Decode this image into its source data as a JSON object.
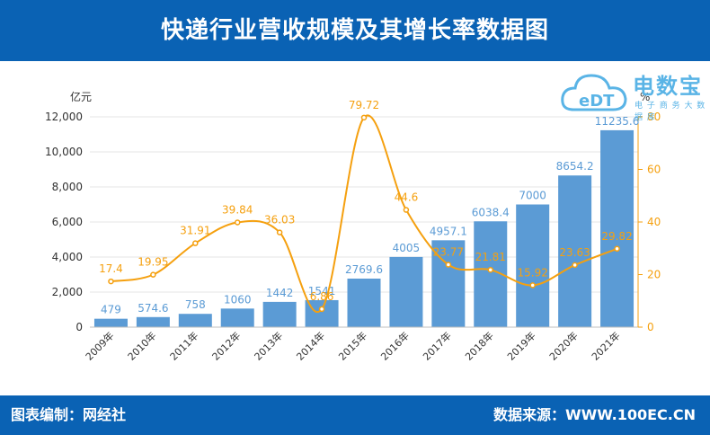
{
  "header": {
    "title": "快递行业营收规模及其增长率数据图"
  },
  "footer": {
    "left": "图表编制：网经社",
    "right": "数据来源：WWW.100EC.CN"
  },
  "watermark": {
    "brand": "电数宝",
    "sub": "电 子 商 务 大 数 据 库",
    "logo_text": "eDT"
  },
  "colors": {
    "bar": "#5b9bd5",
    "line": "#f5a00f",
    "header": "#0a62b4",
    "bar_label": "#5b9bd5",
    "line_label": "#f5a00f"
  },
  "chart_data": {
    "type": "bar",
    "categories": [
      "2009年",
      "2010年",
      "2011年",
      "2012年",
      "2013年",
      "2014年",
      "2015年",
      "2016年",
      "2017年",
      "2018年",
      "2019年",
      "2020年",
      "2021年"
    ],
    "series": [
      {
        "values": [
          479,
          574.6,
          758,
          1060,
          1442,
          1541,
          2769.6,
          4005,
          4957.1,
          6038.4,
          7000,
          8654.2,
          11235.6
        ],
        "type": "bar",
        "axis": "left"
      },
      {
        "values": [
          17.4,
          19.95,
          31.91,
          39.84,
          36.03,
          6.86,
          79.72,
          44.6,
          23.77,
          21.81,
          15.92,
          23.63,
          29.82
        ],
        "type": "line",
        "axis": "right"
      }
    ],
    "bar_labels": [
      "479",
      "574.6",
      "758",
      "1060",
      "1442",
      "1541",
      "2769.6",
      "4005",
      "4957.1",
      "6038.4",
      "7000",
      "8654.2",
      "11235.6"
    ],
    "line_labels": [
      "17.4",
      "19.95",
      "31.91",
      "39.84",
      "36.03",
      "6.86",
      "79.72",
      "44.6",
      "23.77",
      "21.81",
      "15.92",
      "23.63",
      "29.82"
    ],
    "ylabel": "亿元",
    "y2label": "%",
    "ylim": [
      0,
      12000
    ],
    "y2lim": [
      0,
      80
    ],
    "yticks": [
      "0",
      "2,000",
      "4,000",
      "6,000",
      "8,000",
      "10,000",
      "12,000"
    ],
    "y2ticks": [
      "0",
      "20",
      "40",
      "60",
      "80"
    ],
    "grid": true
  }
}
